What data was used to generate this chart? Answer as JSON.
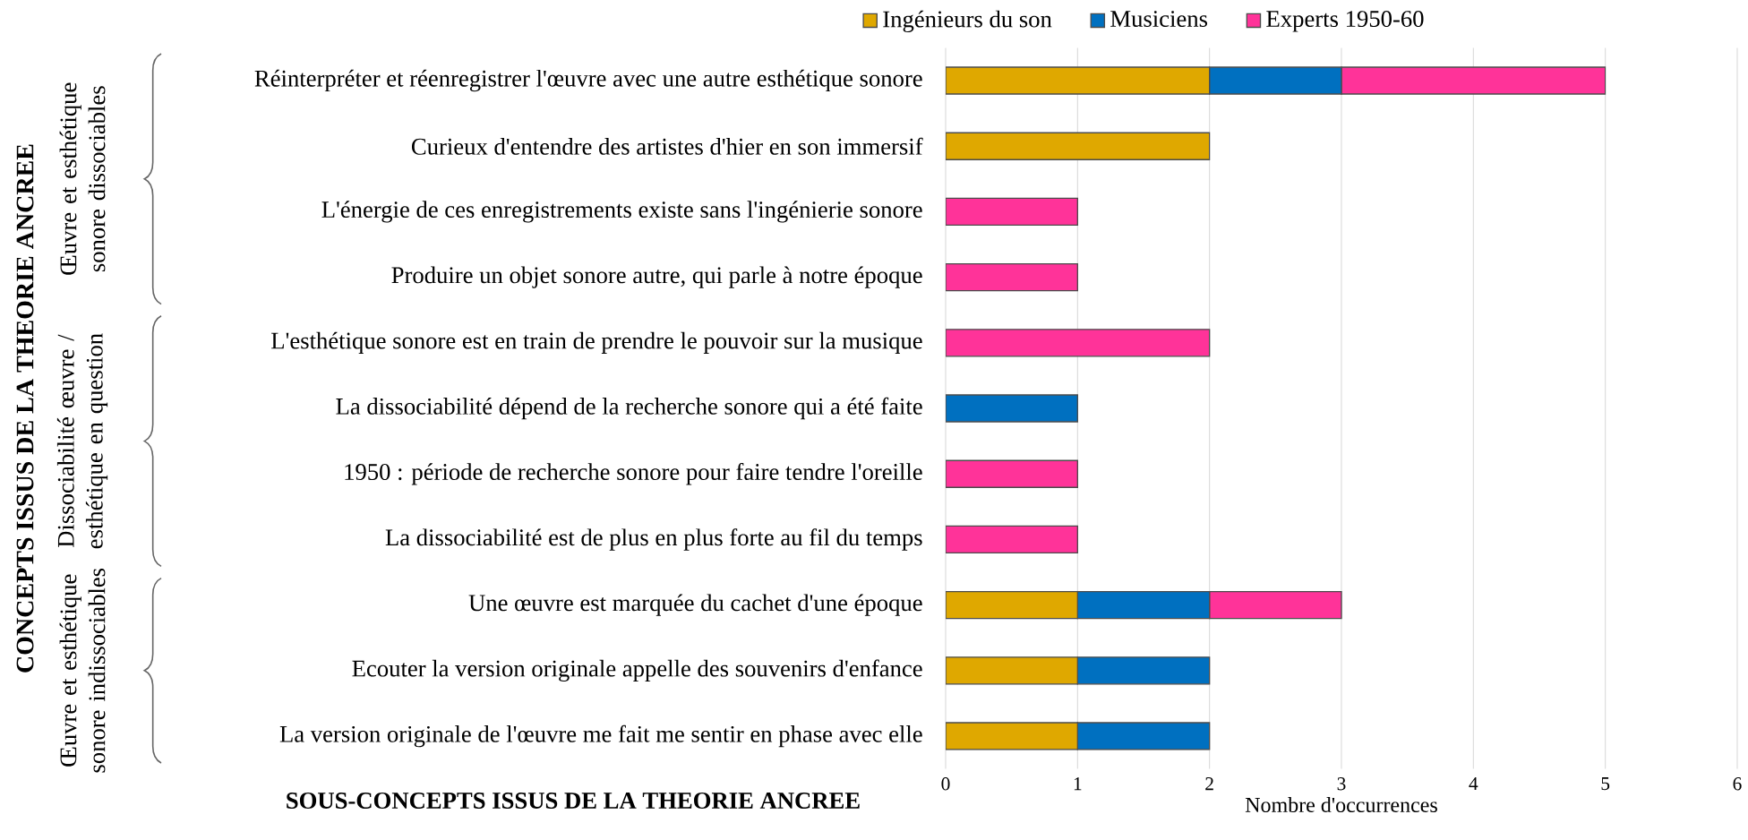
{
  "chart_data": {
    "type": "bar",
    "orientation": "horizontal",
    "stacked": true,
    "xlabel": "Nombre d'occurrences",
    "categories": [
      "Réinterpréter et réenregistrer l'œuvre avec une autre esthétique sonore",
      "Curieux d'entendre des artistes d'hier en son immersif",
      "L'énergie de ces enregistrements existe sans l'ingénierie sonore",
      "Produire un objet sonore autre, qui parle à notre époque",
      "L'esthétique sonore est en train de prendre le pouvoir sur la musique",
      "La dissociabilité dépend de la recherche sonore qui a été faite",
      "1950 : période de recherche sonore pour faire tendre l'oreille",
      "La dissociabilité est de plus en plus forte au fil du temps",
      "Une œuvre est marquée du cachet d'une époque",
      "Ecouter la version originale appelle des souvenirs d'enfance",
      "La version originale de l'œuvre me fait me sentir en phase avec elle"
    ],
    "series": [
      {
        "name": "Ingénieurs du son",
        "color": "#dfa800",
        "values": [
          2,
          2,
          0,
          0,
          0,
          0,
          0,
          0,
          1,
          1,
          1
        ]
      },
      {
        "name": "Musiciens",
        "color": "#0070c0",
        "values": [
          1,
          0,
          0,
          0,
          0,
          1,
          0,
          0,
          1,
          1,
          1
        ]
      },
      {
        "name": "Experts 1950-60",
        "color": "#ff3399",
        "values": [
          2,
          0,
          1,
          1,
          2,
          0,
          1,
          1,
          1,
          0,
          0
        ]
      }
    ],
    "xlim": [
      0,
      6
    ],
    "xticks": [
      0,
      1,
      2,
      3,
      4,
      5,
      6
    ],
    "grid": "x",
    "legend": "top",
    "annotations": [
      "CONCEPTS ISSUS DE LA THEORIE ANCREE",
      "Œuvre et esthétique sonore dissociables",
      "Dissociabilité œuvre / esthétique en question",
      "Œuvre et esthétique sonore indissociables",
      "SOUS-CONCEPTS ISSUS DE LA THEORIE ANCREE"
    ]
  }
}
